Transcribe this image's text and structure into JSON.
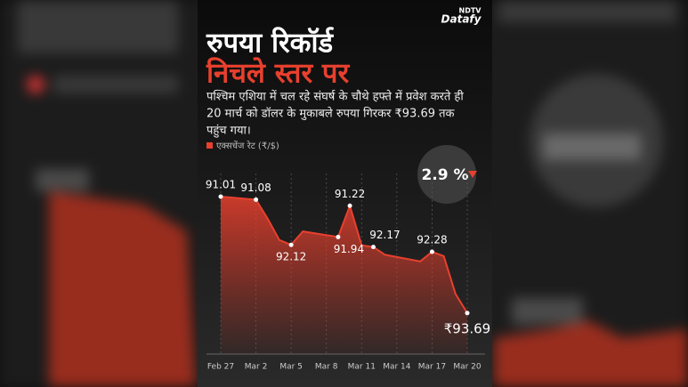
{
  "logo": {
    "top": "NDTV",
    "main": "Datafy"
  },
  "chart_data": {
    "type": "area-line",
    "title": "रुपया रिकॉर्ड",
    "title_highlight": "निचले स्तर पर",
    "subtitle_lines": [
      "पश्चिम एशिया में चल रहे संघर्ष के चौथे हफ्ते में प्रवेश करते ही",
      "20 मार्च को डॉलर के मुकाबले रुपया गिरकर ₹93.69 तक",
      "पहुंच गया।"
    ],
    "badge": "2.9 %",
    "series": [
      {
        "name": "एक्सचेंज रेट (₹/$)",
        "color": "#e8402e",
        "x": [
          "Feb 27",
          "Mar 2",
          "Mar 3",
          "Mar 4",
          "Mar 5",
          "Mar 6",
          "Mar 9",
          "Mar 10",
          "Mar 11",
          "Mar 12",
          "Mar 13",
          "Mar 16",
          "Mar 17",
          "Mar 18",
          "Mar 19",
          "Mar 20"
        ],
        "values": [
          91.01,
          91.08,
          91.52,
          92.01,
          92.12,
          91.81,
          91.94,
          91.22,
          92.13,
          92.17,
          92.35,
          92.5,
          92.28,
          92.38,
          93.25,
          93.69
        ],
        "value_labels": [
          "91.01",
          "91.08",
          null,
          null,
          "92.12",
          null,
          "91.94",
          "91.22",
          null,
          "92.17",
          null,
          null,
          "92.28",
          null,
          null,
          "₹93.69"
        ]
      }
    ],
    "xticks": [
      "Feb 27",
      "Mar 2",
      "Mar 5",
      "Mar 8",
      "Mar 11",
      "Mar 14",
      "Mar 17",
      "Mar 20"
    ],
    "ylim": [
      90.6,
      94
    ],
    "y_inverted": true,
    "grid": true
  }
}
